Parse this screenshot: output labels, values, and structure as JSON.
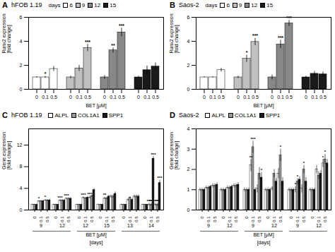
{
  "chart_data": [
    {
      "type": "bar",
      "panel_label": "A",
      "title": "hFOB 1.19",
      "xlabel": "BET [μM]",
      "ylabel": "Runx2 expression\n[fold change]",
      "categories": [
        "0",
        "0.1",
        "0.5"
      ],
      "legend_title": "days",
      "edge_color": "#000000",
      "series": [
        {
          "name": "6",
          "color": "#ffffff",
          "values": [
            1.0,
            1.0,
            1.7
          ],
          "errors": [
            0.05,
            0.08,
            0.2
          ]
        },
        {
          "name": "9",
          "color": "#c0c0c0",
          "values": [
            1.0,
            1.75,
            3.45
          ],
          "errors": [
            0.1,
            0.25,
            0.3
          ]
        },
        {
          "name": "12",
          "color": "#888888",
          "values": [
            1.0,
            3.25,
            4.75
          ],
          "errors": [
            0.15,
            0.2,
            0.35
          ]
        },
        {
          "name": "15",
          "color": "#1a1a1a",
          "values": [
            1.0,
            1.6,
            1.9
          ],
          "errors": [
            0.1,
            0.35,
            0.3
          ]
        }
      ],
      "annotations": [
        {
          "series": "6",
          "index": 1,
          "text": "*"
        },
        {
          "series": "9",
          "index": 2,
          "text": "***"
        },
        {
          "series": "12",
          "index": 1,
          "text": "**"
        },
        {
          "series": "12",
          "index": 2,
          "text": "***"
        }
      ],
      "ylim": [
        0,
        6
      ],
      "yticks": [
        0,
        2,
        4,
        6
      ]
    },
    {
      "type": "bar",
      "panel_label": "B",
      "title": "Saos-2",
      "xlabel": "BET [μM]",
      "ylabel": "Runx2 expression\n[fold change]",
      "categories": [
        "0",
        "0.1",
        "0.5"
      ],
      "legend_title": "days",
      "edge_color": "#000000",
      "series": [
        {
          "name": "6",
          "color": "#ffffff",
          "values": [
            1.0,
            1.0,
            1.6
          ],
          "errors": [
            0.05,
            0.05,
            0.15
          ]
        },
        {
          "name": "9",
          "color": "#c0c0c0",
          "values": [
            1.0,
            2.55,
            3.95
          ],
          "errors": [
            0.1,
            0.3,
            0.3
          ]
        },
        {
          "name": "12",
          "color": "#888888",
          "values": [
            1.0,
            3.75,
            5.5
          ],
          "errors": [
            0.2,
            0.35,
            0.25
          ]
        },
        {
          "name": "15",
          "color": "#1a1a1a",
          "values": [
            1.0,
            1.3,
            1.25
          ],
          "errors": [
            0.1,
            0.2,
            0.2
          ]
        }
      ],
      "annotations": [
        {
          "series": "9",
          "index": 1,
          "text": "*"
        },
        {
          "series": "9",
          "index": 2,
          "text": "***"
        },
        {
          "series": "12",
          "index": 1,
          "text": "***"
        },
        {
          "series": "12",
          "index": 2,
          "text": "***"
        }
      ],
      "ylim": [
        0,
        6
      ],
      "yticks": [
        0,
        2,
        4,
        6
      ]
    },
    {
      "type": "bar",
      "panel_label": "C",
      "title": "hFOB 1.19",
      "xlabel": "BET [μM]",
      "group_label": "[days]",
      "ylabel": "Gene expression\n[fold change]",
      "categories": [
        "0",
        "0.1",
        "0.5",
        "0",
        "0.1",
        "0.5",
        "0",
        "0.1",
        "0.5",
        "0",
        "0.1",
        "0.5",
        "0",
        "0.1",
        "0.5",
        "0",
        "0.1",
        "0.5"
      ],
      "groups": [
        "9",
        "12",
        "12",
        "15",
        "13",
        "14"
      ],
      "edge_color": "#000000",
      "series": [
        {
          "name": "ALPL",
          "color": "#ffffff",
          "values": [
            1.0,
            1.6,
            1.8,
            1.0,
            1.75,
            2.1,
            1.0,
            2.25,
            2.3,
            1.0,
            2.15,
            2.5,
            1.0,
            1.85,
            2.5,
            1.0,
            1.0,
            1.0
          ],
          "errors": [
            0.1,
            0.15,
            0.2,
            0.1,
            0.2,
            0.2,
            0.1,
            0.2,
            0.25,
            0.1,
            0.2,
            0.3,
            0.1,
            0.2,
            0.3,
            0.1,
            0.3,
            0.3
          ]
        },
        {
          "name": "COL1A1",
          "color": "#999999",
          "values": [
            1.0,
            1.65,
            1.8,
            1.0,
            1.75,
            2.1,
            1.0,
            2.2,
            2.6,
            1.0,
            2.15,
            2.5,
            1.0,
            2.3,
            2.5,
            1.0,
            1.0,
            1.0
          ],
          "errors": [
            0.1,
            0.15,
            0.2,
            0.1,
            0.2,
            0.2,
            0.1,
            0.15,
            0.2,
            0.1,
            0.2,
            0.3,
            0.1,
            0.2,
            0.3,
            0.1,
            0.3,
            0.3
          ]
        },
        {
          "name": "SPP1",
          "color": "#1a1a1a",
          "values": [
            1.0,
            1.65,
            1.8,
            1.0,
            1.75,
            2.1,
            1.0,
            2.3,
            3.7,
            1.0,
            2.5,
            3.0,
            1.0,
            1.9,
            2.5,
            1.0,
            9.5,
            5.0
          ],
          "errors": [
            0.1,
            0.15,
            0.2,
            0.1,
            0.2,
            0.2,
            0.1,
            0.2,
            0.3,
            0.1,
            0.2,
            0.35,
            0.1,
            0.2,
            0.3,
            0.1,
            0.4,
            0.5
          ]
        }
      ],
      "annotations": [
        {
          "series": "ALPL",
          "index": 1,
          "text": "*"
        },
        {
          "series": "ALPL",
          "index": 2,
          "text": "*"
        },
        {
          "series": "ALPL",
          "index": 4,
          "text": "***"
        },
        {
          "series": "ALPL",
          "index": 5,
          "text": "***"
        },
        {
          "series": "ALPL",
          "index": 7,
          "text": "***"
        },
        {
          "series": "ALPL",
          "index": 8,
          "text": "***"
        },
        {
          "series": "ALPL",
          "index": 10,
          "text": "**"
        },
        {
          "series": "ALPL",
          "index": 16,
          "text": "***"
        },
        {
          "series": "ALPL",
          "index": 17,
          "text": "***"
        },
        {
          "series": "COL1A1",
          "index": 16,
          "text": "***"
        },
        {
          "series": "COL1A1",
          "index": 17,
          "text": "***"
        },
        {
          "series": "SPP1",
          "index": 16,
          "text": "***"
        },
        {
          "series": "SPP1",
          "index": 17,
          "text": "***"
        }
      ],
      "ylim": [
        0,
        15
      ],
      "yticks": [
        0,
        4,
        8,
        12
      ]
    },
    {
      "type": "bar",
      "panel_label": "D",
      "title": "Saos-2",
      "xlabel": "BET [μM]",
      "group_label": "[days]",
      "ylabel": "Gene expression\n[fold change]",
      "categories": [
        "0",
        "0.1",
        "0.5",
        "0",
        "0.1",
        "0.5",
        "0",
        "0.1",
        "0.5",
        "0",
        "0.1",
        "0.5",
        "0",
        "0.1",
        "0.5",
        "0",
        "0.1",
        "0.5"
      ],
      "groups": [
        "9",
        "12",
        "9",
        "12",
        "9",
        "12"
      ],
      "edge_color": "#000000",
      "series": [
        {
          "name": "ALPL",
          "color": "#ffffff",
          "values": [
            1.0,
            1.1,
            1.2,
            1.0,
            1.1,
            1.2,
            1.0,
            2.2,
            1.05,
            1.0,
            1.05,
            1.8,
            1.0,
            1.0,
            1.05,
            1.0,
            2.0,
            2.3
          ],
          "errors": [
            0.08,
            0.08,
            0.1,
            0.08,
            0.08,
            0.1,
            0.1,
            0.3,
            0.2,
            0.08,
            0.1,
            0.25,
            0.08,
            0.15,
            0.2,
            0.08,
            0.2,
            0.2
          ]
        },
        {
          "name": "COL1A1",
          "color": "#999999",
          "values": [
            1.0,
            1.1,
            1.2,
            1.0,
            1.1,
            1.2,
            1.0,
            3.1,
            1.8,
            1.0,
            1.8,
            2.7,
            1.0,
            1.4,
            2.0,
            1.0,
            1.7,
            2.5
          ],
          "errors": [
            0.08,
            0.08,
            0.1,
            0.08,
            0.08,
            0.1,
            0.08,
            0.3,
            0.3,
            0.08,
            0.2,
            0.3,
            0.08,
            0.15,
            0.2,
            0.08,
            0.2,
            0.25
          ]
        },
        {
          "name": "SPP1",
          "color": "#1a1a1a",
          "values": [
            1.0,
            1.15,
            1.25,
            1.0,
            1.15,
            1.25,
            1.0,
            1.0,
            1.6,
            1.0,
            1.4,
            1.4,
            1.0,
            1.5,
            1.4,
            1.0,
            1.8,
            2.3
          ],
          "errors": [
            0.08,
            0.08,
            0.1,
            0.08,
            0.08,
            0.1,
            0.08,
            0.1,
            0.25,
            0.08,
            0.15,
            0.2,
            0.08,
            0.15,
            0.2,
            0.08,
            0.15,
            0.2
          ]
        }
      ],
      "annotations": [
        {
          "series": "ALPL",
          "index": 7,
          "text": "**"
        },
        {
          "series": "ALPL",
          "index": 13,
          "text": "*"
        },
        {
          "series": "ALPL",
          "index": 17,
          "text": "*"
        },
        {
          "series": "COL1A1",
          "index": 7,
          "text": "***"
        },
        {
          "series": "COL1A1",
          "index": 11,
          "text": "*"
        },
        {
          "series": "COL1A1",
          "index": 13,
          "text": "*"
        },
        {
          "series": "COL1A1",
          "index": 14,
          "text": "*"
        },
        {
          "series": "COL1A1",
          "index": 17,
          "text": "*"
        },
        {
          "series": "SPP1",
          "index": 8,
          "text": "*"
        }
      ],
      "ylim": [
        0,
        4
      ],
      "yticks": [
        0,
        1,
        2,
        3,
        4
      ]
    }
  ]
}
